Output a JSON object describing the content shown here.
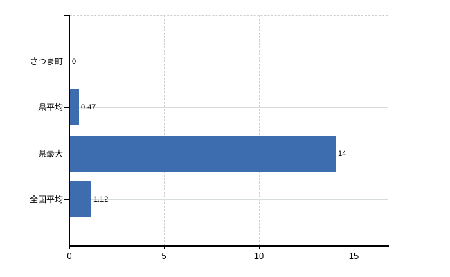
{
  "chart_data": {
    "type": "bar",
    "orientation": "horizontal",
    "categories": [
      "さつま町",
      "県平均",
      "県最大",
      "全国平均"
    ],
    "values": [
      0,
      0.47,
      14,
      1.12
    ],
    "value_labels": [
      "0",
      "0.47",
      "14",
      "1.12"
    ],
    "xticks": [
      0,
      5,
      10,
      15
    ],
    "xtick_labels": [
      "0",
      "5",
      "10",
      "15"
    ],
    "xlim": [
      0,
      16.8
    ],
    "ylabel": "",
    "xlabel": "",
    "title": "",
    "legend": false,
    "grid": true,
    "bar_color": "#3d6daf",
    "background_color": "#ffffff",
    "h_gridline_color": "#d7ded7",
    "v_gridline_color": "#d2ccd3",
    "axis_color": "#000000"
  }
}
